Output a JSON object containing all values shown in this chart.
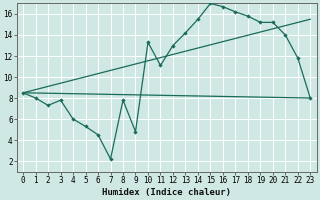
{
  "xlabel": "Humidex (Indice chaleur)",
  "bg_color": "#cfe8e4",
  "line_color": "#1a6b5a",
  "grid_color": "#ffffff",
  "xlim": [
    -0.5,
    23.5
  ],
  "ylim": [
    1,
    17
  ],
  "xticks": [
    0,
    1,
    2,
    3,
    4,
    5,
    6,
    7,
    8,
    9,
    10,
    11,
    12,
    13,
    14,
    15,
    16,
    17,
    18,
    19,
    20,
    21,
    22,
    23
  ],
  "yticks": [
    2,
    4,
    6,
    8,
    10,
    12,
    14,
    16
  ],
  "series1_x": [
    0,
    1,
    2,
    3,
    4,
    5,
    6,
    7,
    8,
    9,
    10,
    11,
    12,
    13,
    14,
    15,
    16,
    17,
    18,
    19,
    20,
    21,
    22,
    23
  ],
  "series1_y": [
    8.5,
    8.0,
    7.3,
    7.8,
    6.0,
    5.3,
    4.5,
    2.2,
    7.8,
    4.8,
    13.3,
    11.1,
    13.0,
    14.2,
    15.5,
    17.0,
    16.7,
    16.2,
    15.8,
    15.2,
    15.2,
    14.0,
    11.8,
    8.0
  ],
  "series2_x": [
    0,
    23
  ],
  "series2_y": [
    8.5,
    8.0
  ],
  "series3_x": [
    0,
    23
  ],
  "series3_y": [
    8.5,
    15.5
  ]
}
